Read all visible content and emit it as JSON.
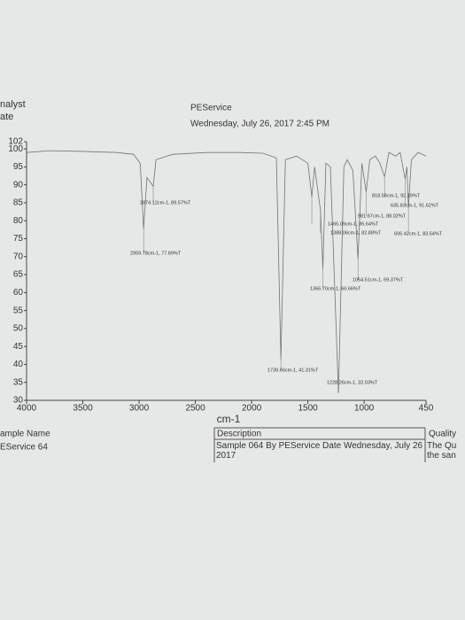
{
  "header": {
    "left": [
      "nalyst",
      "ate"
    ],
    "service": "PEService",
    "date": "Wednesday, July 26, 2017 2:45 PM"
  },
  "chart_data": {
    "type": "line",
    "x_label": "cm-1",
    "x": [
      4000,
      3800,
      3500,
      3200,
      3050,
      2990,
      2959.78,
      2930,
      2874.12,
      2850,
      2700,
      2400,
      2100,
      1900,
      1780,
      1739.66,
      1700,
      1600,
      1500,
      1465.09,
      1440,
      1388.06,
      1366.7,
      1340,
      1300,
      1228.26,
      1180,
      1150,
      1100,
      1054.51,
      1020,
      981.67,
      950,
      900,
      860,
      818.58,
      780,
      720,
      680,
      635.83,
      620,
      606.42,
      580,
      520,
      450
    ],
    "series": [
      {
        "color": "#6f7478",
        "values": [
          99,
          99.5,
          99.3,
          99,
          98.5,
          96,
          77.69,
          92,
          89.57,
          97,
          98.5,
          99,
          99,
          98.8,
          97.5,
          41.31,
          97,
          98,
          96,
          86.64,
          95,
          82.88,
          66.66,
          96,
          95,
          32.03,
          95,
          97,
          94,
          69.37,
          96,
          88.02,
          97,
          98,
          96,
          92.19,
          99,
          98,
          99,
          91.62,
          95,
          83.54,
          97,
          99,
          98
        ]
      }
    ],
    "xlim": [
      4000,
      450
    ],
    "ylim": [
      30,
      102
    ],
    "xticks": [
      4000,
      3500,
      3000,
      2500,
      2000,
      1500,
      1000,
      450
    ],
    "yticks": [
      102,
      100,
      95,
      90,
      85,
      80,
      75,
      70,
      65,
      60,
      55,
      50,
      45,
      40,
      35,
      30
    ],
    "annotations": [
      "2874.12cm-1, 89.57%T",
      "2959.78cm-1, 77.69%T",
      "818.58cm-1, 92.19%T",
      "635.83cm-1, 91.62%T",
      "981.67cm-1, 88.02%T",
      "1465.09cm-1, 86.64%T",
      "1388.06cm-1, 82.88%T",
      "606.42cm-1, 83.54%T",
      "1054.51cm-1, 69.37%T",
      "1366.70cm-1, 66.66%T",
      "1739.66cm-1, 41.31%T",
      "1228.26cm-1, 32.03%T"
    ]
  },
  "table": {
    "headers": [
      "ample Name",
      "Description",
      "Quality"
    ],
    "rows": [
      [
        "EService 64",
        "Sample 064 By PEService Date Wednesday, July 26 2017",
        "The Qu the san"
      ]
    ]
  }
}
